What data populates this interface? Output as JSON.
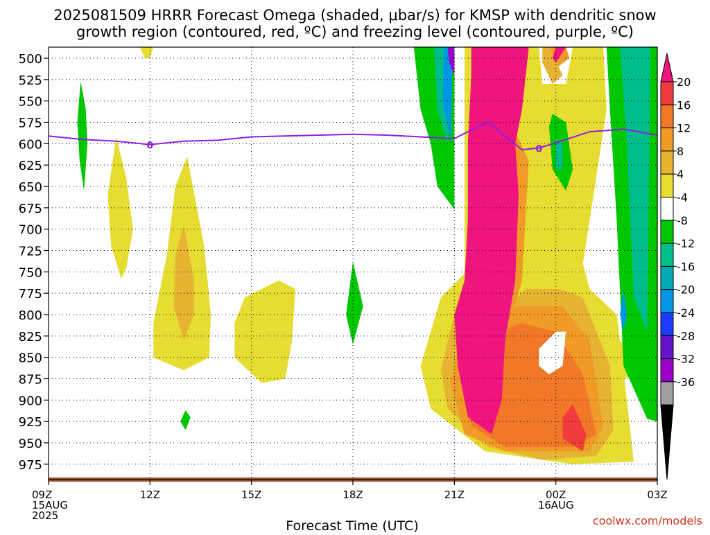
{
  "chart_data": {
    "type": "heatmap",
    "title_lines": [
      "2025081509 HRRR Forecast Omega (shaded, μbar/s) for KMSP with dendritic snow",
      "growth region (contoured, red, ºC) and freezing level (contoured, purple, ºC)"
    ],
    "xlabel": "Forecast Time (UTC)",
    "ylabel": "",
    "credit": "coolwx.com/models",
    "x_range_hours": [
      0,
      18
    ],
    "x_ticks": [
      {
        "hour": 0,
        "lines": [
          "09Z",
          "15AUG",
          "2025"
        ]
      },
      {
        "hour": 3,
        "lines": [
          "12Z"
        ]
      },
      {
        "hour": 6,
        "lines": [
          "15Z"
        ]
      },
      {
        "hour": 9,
        "lines": [
          "18Z"
        ]
      },
      {
        "hour": 12,
        "lines": [
          "21Z"
        ]
      },
      {
        "hour": 15,
        "lines": [
          "00Z",
          "16AUG"
        ]
      },
      {
        "hour": 18,
        "lines": [
          "03Z"
        ]
      }
    ],
    "y_range_mb": [
      487,
      993
    ],
    "y_ticks_mb": [
      500,
      525,
      550,
      575,
      600,
      625,
      650,
      675,
      700,
      725,
      750,
      775,
      800,
      825,
      850,
      875,
      900,
      925,
      950,
      975
    ],
    "grid": true,
    "colorbar": {
      "labels": [
        "20",
        "16",
        "12",
        "8",
        "4",
        "-4",
        "-8",
        "-12",
        "-16",
        "-20",
        "-24",
        "-28",
        "-32",
        "-36"
      ],
      "colors": [
        "#f0147f",
        "#f03c3c",
        "#f07828",
        "#f09b28",
        "#e6b432",
        "#e6dc32",
        "#ffffff",
        "#00c800",
        "#00be8c",
        "#00aab4",
        "#0096e6",
        "#1e3cff",
        "#6414c8",
        "#9b00c8",
        "#a0a0a0",
        "#000000"
      ]
    },
    "colors": {
      "strong_rise": "#f0147f",
      "red": "#f03c3c",
      "orange": "#f07828",
      "light_orange": "#f09b28",
      "gold": "#e6b432",
      "yellow": "#e6dc32",
      "green": "#00c800",
      "teal": "#00be8c",
      "cyan": "#00aab4",
      "sky_blue": "#0096e6",
      "blue": "#1e3cff",
      "purple": "#9b00c8",
      "freezing_line": "#8c1ee6",
      "ground": "#a0522d",
      "credit": "#d2321e"
    },
    "freezing_level": {
      "label": "0",
      "hours": [
        0,
        1,
        2,
        3,
        4,
        5,
        6,
        7,
        8,
        9,
        10,
        11,
        12,
        12.5,
        13,
        14,
        14.5,
        15,
        16,
        17,
        18
      ],
      "mb": [
        591,
        595,
        597,
        601,
        597,
        596,
        592,
        591,
        590,
        589,
        590,
        592,
        594,
        584,
        575,
        607,
        605,
        599,
        586,
        583,
        590
      ]
    },
    "freezing_label_hours": [
      3,
      14.5
    ]
  }
}
